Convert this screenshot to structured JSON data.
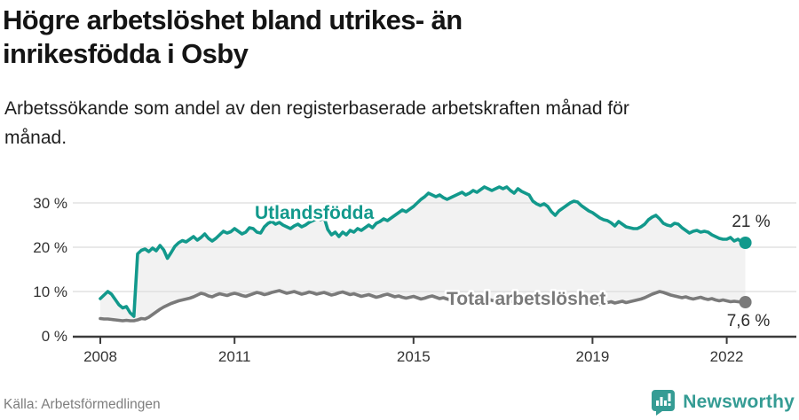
{
  "header": {
    "title": "Högre arbetslöshet bland utrikes- än\ninrikesfödda i Osby",
    "subtitle": "Arbetssökande som andel av den registerbaserade arbetskraften månad för\nmånad."
  },
  "footer": {
    "source": "Källa: Arbetsförmedlingen",
    "brand": "Newsworthy"
  },
  "colors": {
    "series_teal": "#12998c",
    "series_gray": "#7a7a7a",
    "band_fill": "#f2f2f2",
    "grid": "#dcdcdc",
    "axis": "#3b3b3b",
    "tick_text": "#333333",
    "brand_teal": "#359c94",
    "source_text": "#7e7e7e"
  },
  "chart_data": {
    "type": "line",
    "x_start": "2008-01",
    "x_end": "2022-06",
    "x_interval": "month",
    "ylim": [
      0,
      35
    ],
    "yticks": [
      0,
      10,
      20,
      30
    ],
    "ytick_labels": [
      "0 %",
      "10 %",
      "20 %",
      "30 %"
    ],
    "xticks": [
      2008,
      2011,
      2015,
      2019,
      2022
    ],
    "xtick_labels": [
      "2008",
      "2011",
      "2015",
      "2019",
      "2022"
    ],
    "grid": true,
    "band_fill_between_series": true,
    "legend_position": "inline",
    "series": [
      {
        "name": "Utlandsfödda",
        "color": "#12998c",
        "end_label": "21 %",
        "values": [
          8.4,
          9.2,
          10.0,
          9.4,
          8.2,
          7.0,
          6.3,
          6.6,
          5.2,
          4.4,
          18.5,
          19.3,
          19.6,
          19.0,
          19.8,
          19.2,
          20.4,
          19.4,
          17.5,
          18.8,
          20.2,
          21.0,
          21.5,
          21.2,
          21.8,
          22.4,
          21.6,
          22.2,
          23.0,
          22.0,
          21.4,
          22.0,
          22.8,
          23.6,
          23.2,
          23.5,
          24.2,
          23.6,
          23.0,
          23.4,
          24.4,
          24.2,
          23.4,
          23.2,
          24.6,
          25.4,
          25.8,
          25.2,
          25.6,
          25.0,
          24.6,
          24.2,
          24.8,
          25.2,
          24.6,
          25.0,
          25.6,
          26.0,
          26.4,
          26.2,
          26.8,
          24.0,
          22.8,
          23.4,
          22.4,
          23.4,
          22.8,
          23.8,
          23.4,
          24.2,
          23.8,
          24.4,
          25.0,
          24.4,
          25.4,
          25.8,
          26.4,
          26.0,
          26.6,
          27.2,
          27.8,
          28.4,
          28.0,
          28.6,
          29.2,
          30.0,
          30.8,
          31.4,
          32.2,
          31.8,
          31.4,
          31.8,
          31.2,
          30.8,
          31.2,
          31.6,
          32.0,
          32.4,
          31.8,
          32.2,
          32.8,
          32.4,
          33.0,
          33.6,
          33.2,
          32.8,
          33.2,
          33.6,
          33.2,
          33.6,
          32.8,
          32.2,
          33.2,
          32.6,
          32.2,
          31.8,
          30.4,
          29.8,
          29.4,
          29.8,
          29.2,
          28.0,
          27.2,
          28.2,
          28.8,
          29.4,
          30.0,
          30.4,
          30.2,
          29.4,
          28.8,
          28.2,
          27.8,
          27.2,
          26.6,
          26.2,
          26.0,
          25.5,
          24.8,
          25.8,
          25.2,
          24.6,
          24.4,
          24.2,
          24.2,
          24.6,
          25.2,
          26.2,
          26.8,
          27.2,
          26.4,
          25.4,
          25.0,
          24.8,
          25.4,
          25.2,
          24.4,
          23.8,
          23.2,
          23.6,
          23.8,
          23.4,
          23.6,
          23.4,
          22.8,
          22.4,
          22.0,
          21.8,
          21.8,
          22.2,
          21.4,
          21.8,
          21.2,
          21.0
        ]
      },
      {
        "name": "Total arbetslöshet",
        "color": "#7a7a7a",
        "end_label": "7,6 %",
        "values": [
          3.9,
          3.8,
          3.8,
          3.7,
          3.6,
          3.5,
          3.4,
          3.5,
          3.4,
          3.4,
          3.6,
          3.9,
          3.8,
          4.2,
          4.8,
          5.4,
          6.0,
          6.5,
          6.9,
          7.3,
          7.6,
          7.9,
          8.1,
          8.3,
          8.5,
          8.8,
          9.2,
          9.6,
          9.4,
          9.0,
          8.8,
          9.2,
          9.5,
          9.3,
          9.1,
          9.4,
          9.6,
          9.4,
          9.1,
          8.9,
          9.2,
          9.5,
          9.8,
          9.6,
          9.3,
          9.5,
          9.8,
          10.0,
          10.2,
          9.9,
          9.6,
          9.8,
          10.0,
          9.7,
          9.4,
          9.6,
          9.9,
          9.7,
          9.4,
          9.6,
          9.8,
          9.5,
          9.2,
          9.4,
          9.7,
          9.9,
          9.6,
          9.3,
          9.5,
          9.2,
          8.9,
          9.1,
          9.3,
          9.0,
          8.7,
          8.9,
          9.2,
          9.4,
          9.1,
          8.8,
          9.0,
          8.7,
          8.5,
          8.7,
          8.9,
          8.6,
          8.3,
          8.5,
          8.8,
          9.0,
          8.7,
          8.4,
          8.6,
          8.3,
          8.1,
          8.3,
          8.5,
          8.2,
          8.0,
          8.2,
          8.4,
          8.1,
          7.9,
          8.1,
          8.3,
          8.0,
          7.8,
          8.0,
          8.2,
          7.9,
          7.7,
          7.9,
          8.1,
          7.8,
          7.6,
          7.8,
          8.0,
          7.7,
          7.5,
          7.7,
          7.9,
          7.6,
          7.4,
          7.6,
          7.8,
          7.5,
          7.3,
          7.5,
          7.7,
          7.4,
          7.2,
          7.4,
          7.6,
          7.3,
          7.1,
          7.3,
          7.5,
          7.7,
          7.4,
          7.6,
          7.8,
          7.5,
          7.7,
          7.9,
          8.1,
          8.3,
          8.6,
          9.0,
          9.4,
          9.7,
          10.0,
          9.8,
          9.5,
          9.2,
          9.0,
          8.8,
          8.6,
          8.8,
          8.5,
          8.3,
          8.5,
          8.7,
          8.4,
          8.2,
          8.4,
          8.1,
          7.9,
          8.1,
          7.9,
          7.7,
          7.8,
          7.7,
          7.6,
          7.6
        ]
      }
    ]
  }
}
